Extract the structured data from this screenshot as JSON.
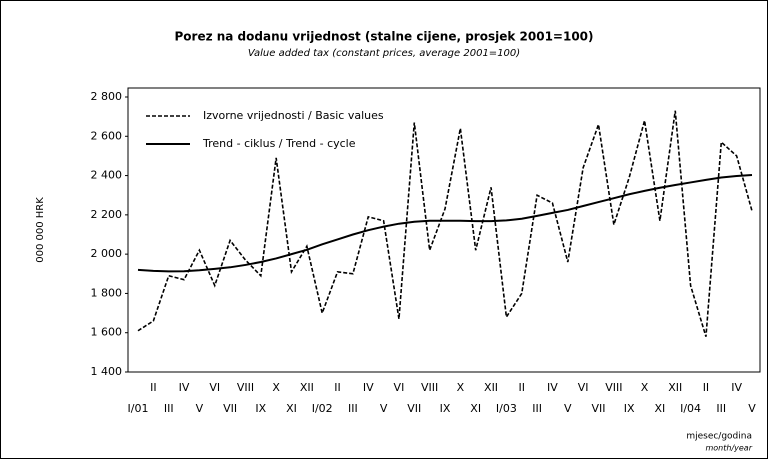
{
  "chart_data": {
    "type": "line",
    "title": "Porez na dodanu vrijednost (stalne cijene, prosjek 2001=100)",
    "subtitle": "Value added tax (constant prices, average 2001=100)",
    "ylabel": "000 000 HRK",
    "xlabel": "mjesec/godina",
    "xlabel_en": "month/year",
    "categories": [
      "I/01",
      "II",
      "III",
      "IV",
      "V",
      "VI",
      "VII",
      "VIII",
      "IX",
      "X",
      "XI",
      "XII",
      "I/02",
      "II",
      "III",
      "IV",
      "V",
      "VI",
      "VII",
      "VIII",
      "IX",
      "X",
      "XI",
      "XII",
      "I/03",
      "II",
      "III",
      "IV",
      "V",
      "VI",
      "VII",
      "VIII",
      "IX",
      "X",
      "XI",
      "XII",
      "I/04",
      "II",
      "III",
      "IV",
      "V"
    ],
    "series": [
      {
        "name": "Izvorne vrijednosti / Basic values",
        "color": "#000000",
        "dashed": true,
        "values": [
          1610,
          1660,
          1890,
          1870,
          2020,
          1840,
          2070,
          1970,
          1890,
          2490,
          1910,
          2040,
          1700,
          1910,
          1900,
          2190,
          2170,
          1670,
          2670,
          2020,
          2230,
          2640,
          2020,
          2340,
          1680,
          1800,
          2300,
          2260,
          1960,
          2440,
          2660,
          2150,
          2390,
          2680,
          2170,
          2730,
          1840,
          1580,
          2570,
          2500,
          2220
        ]
      },
      {
        "name": "Trend - ciklus / Trend - cycle",
        "color": "#000000",
        "dashed": false,
        "values": [
          1920,
          1915,
          1912,
          1913,
          1918,
          1925,
          1933,
          1945,
          1960,
          1978,
          2000,
          2022,
          2050,
          2075,
          2100,
          2122,
          2140,
          2155,
          2165,
          2170,
          2170,
          2170,
          2168,
          2168,
          2172,
          2180,
          2195,
          2210,
          2225,
          2245,
          2265,
          2285,
          2305,
          2322,
          2338,
          2352,
          2365,
          2378,
          2390,
          2398,
          2403
        ]
      }
    ],
    "ylim": [
      1400,
      2800
    ],
    "yticks": [
      {
        "value": 1400,
        "label": "1 400"
      },
      {
        "value": 1600,
        "label": "1 600"
      },
      {
        "value": 1800,
        "label": "1 800"
      },
      {
        "value": 2000,
        "label": "2 000"
      },
      {
        "value": 2200,
        "label": "2 200"
      },
      {
        "value": 2400,
        "label": "2 400"
      },
      {
        "value": 2600,
        "label": "2 600"
      },
      {
        "value": 2800,
        "label": "2 800"
      }
    ],
    "legend": "upper left",
    "grid": false
  }
}
